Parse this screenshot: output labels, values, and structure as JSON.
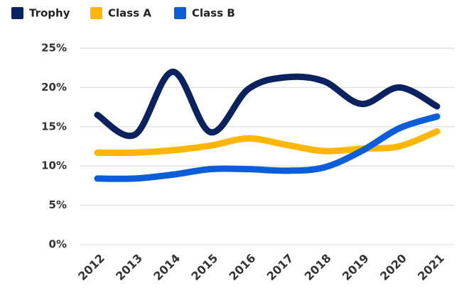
{
  "chart_data": {
    "type": "line",
    "categories": [
      "2012",
      "2013",
      "2014",
      "2015",
      "2016",
      "2017",
      "2018",
      "2019",
      "2020",
      "2021"
    ],
    "series": [
      {
        "name": "Trophy",
        "color": "#0b2260",
        "values": [
          16.5,
          14.0,
          22.0,
          14.3,
          19.8,
          21.3,
          20.8,
          17.9,
          20.0,
          17.6
        ]
      },
      {
        "name": "Class A",
        "color": "#ffb600",
        "values": [
          11.7,
          11.7,
          12.0,
          12.6,
          13.5,
          12.7,
          11.9,
          12.2,
          12.5,
          14.4
        ]
      },
      {
        "name": "Class B",
        "color": "#0b5ed7",
        "values": [
          8.4,
          8.4,
          8.9,
          9.6,
          9.6,
          9.4,
          9.8,
          11.9,
          14.8,
          16.3
        ]
      }
    ],
    "ylim": [
      0,
      25
    ],
    "yticks": [
      {
        "value": 0,
        "label": "0%"
      },
      {
        "value": 5,
        "label": "5%"
      },
      {
        "value": 10,
        "label": "10%"
      },
      {
        "value": 15,
        "label": "15%"
      },
      {
        "value": 20,
        "label": "20%"
      },
      {
        "value": 25,
        "label": "25%"
      }
    ],
    "grid": true,
    "legend": "top-left"
  }
}
